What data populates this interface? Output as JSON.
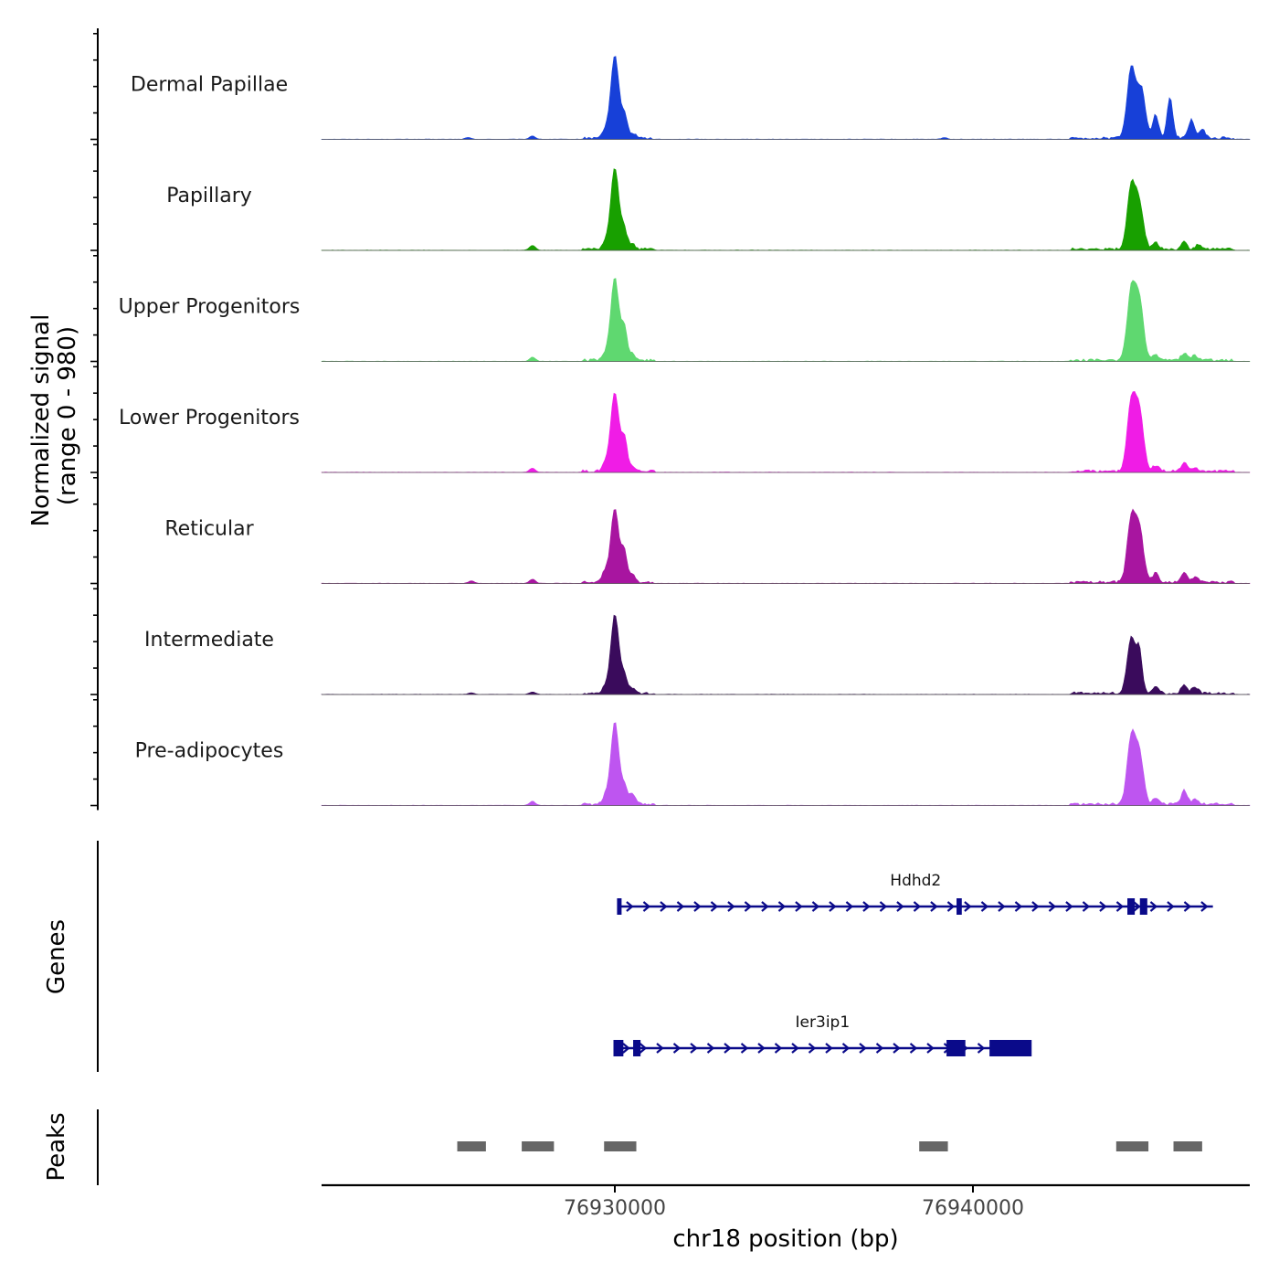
{
  "chart_data": {
    "type": "area",
    "title": "",
    "y_axis_label": "Normalized signal",
    "y_axis_sublabel": "(range 0 - 980)",
    "x_axis_label": "chr18 position (bp)",
    "x_range": [
      76922000,
      76948000
    ],
    "x_ticks": [
      76930000,
      76940000
    ],
    "x_tick_labels": [
      "76930000",
      "76940000"
    ],
    "signal_range": [
      0,
      980
    ],
    "tracks": [
      {
        "name": "Dermal Papillae",
        "color": "#1740d8"
      },
      {
        "name": "Papillary",
        "color": "#18a000"
      },
      {
        "name": "Upper Progenitors",
        "color": "#5fd870"
      },
      {
        "name": "Lower Progenitors",
        "color": "#f01ce6"
      },
      {
        "name": "Reticular",
        "color": "#a815a0"
      },
      {
        "name": "Intermediate",
        "color": "#3a0b5c"
      },
      {
        "name": "Pre-adipocytes",
        "color": "#be55f0"
      }
    ],
    "signal_peaks": [
      [
        [
          76930000,
          0.98
        ],
        [
          76930270,
          0.26
        ],
        [
          76929720,
          0.08
        ],
        [
          76930500,
          0.06
        ],
        [
          76944420,
          0.84
        ],
        [
          76944700,
          0.58
        ],
        [
          76945100,
          0.28
        ],
        [
          76945500,
          0.48
        ],
        [
          76946100,
          0.22
        ],
        [
          76946400,
          0.12
        ],
        [
          76927700,
          0.04
        ],
        [
          76925900,
          0.02
        ],
        [
          76939200,
          0.02
        ]
      ],
      [
        [
          76930000,
          0.97
        ],
        [
          76930270,
          0.22
        ],
        [
          76929720,
          0.06
        ],
        [
          76930500,
          0.06
        ],
        [
          76944420,
          0.74
        ],
        [
          76944650,
          0.52
        ],
        [
          76945100,
          0.08
        ],
        [
          76945900,
          0.08
        ],
        [
          76946300,
          0.06
        ],
        [
          76927700,
          0.06
        ]
      ],
      [
        [
          76930000,
          0.98
        ],
        [
          76930270,
          0.37
        ],
        [
          76929720,
          0.06
        ],
        [
          76930500,
          0.07
        ],
        [
          76944420,
          0.82
        ],
        [
          76944650,
          0.7
        ],
        [
          76945100,
          0.07
        ],
        [
          76945900,
          0.09
        ],
        [
          76946200,
          0.06
        ],
        [
          76927700,
          0.05
        ]
      ],
      [
        [
          76930000,
          0.94
        ],
        [
          76930270,
          0.38
        ],
        [
          76929720,
          0.08
        ],
        [
          76930500,
          0.06
        ],
        [
          76944420,
          0.82
        ],
        [
          76944650,
          0.7
        ],
        [
          76945100,
          0.07
        ],
        [
          76945900,
          0.11
        ],
        [
          76946200,
          0.05
        ],
        [
          76927700,
          0.05
        ]
      ],
      [
        [
          76930000,
          0.87
        ],
        [
          76930270,
          0.35
        ],
        [
          76929720,
          0.12
        ],
        [
          76930500,
          0.08
        ],
        [
          76944420,
          0.74
        ],
        [
          76944650,
          0.62
        ],
        [
          76945100,
          0.11
        ],
        [
          76945900,
          0.12
        ],
        [
          76946200,
          0.06
        ],
        [
          76927700,
          0.05
        ],
        [
          76926000,
          0.03
        ]
      ],
      [
        [
          76930000,
          0.94
        ],
        [
          76930270,
          0.2
        ],
        [
          76929720,
          0.06
        ],
        [
          76930500,
          0.06
        ],
        [
          76944420,
          0.66
        ],
        [
          76944650,
          0.48
        ],
        [
          76945100,
          0.08
        ],
        [
          76945900,
          0.1
        ],
        [
          76946200,
          0.08
        ],
        [
          76927700,
          0.03
        ],
        [
          76926000,
          0.02
        ]
      ],
      [
        [
          76930000,
          0.98
        ],
        [
          76930270,
          0.2
        ],
        [
          76929720,
          0.08
        ],
        [
          76930500,
          0.12
        ],
        [
          76944420,
          0.79
        ],
        [
          76944650,
          0.58
        ],
        [
          76945100,
          0.08
        ],
        [
          76945900,
          0.17
        ],
        [
          76946200,
          0.06
        ],
        [
          76927700,
          0.05
        ]
      ]
    ],
    "genes_axis_label": "Genes",
    "genes": [
      {
        "name": "Hdhd2",
        "start": 76930100,
        "end": 76946700,
        "exons": [
          [
            76930100,
            76930150
          ],
          [
            76939580,
            76939650
          ],
          [
            76944350,
            76944480
          ],
          [
            76944700,
            76944830
          ]
        ]
      },
      {
        "name": "Ier3ip1",
        "start": 76930000,
        "end": 76941600,
        "exons": [
          [
            76930000,
            76930200
          ],
          [
            76930550,
            76930680
          ],
          [
            76939300,
            76939750
          ],
          [
            76940500,
            76941600
          ]
        ]
      }
    ],
    "peaks_axis_label": "Peaks",
    "peaks": [
      [
        76925600,
        76926400
      ],
      [
        76927400,
        76928300
      ],
      [
        76929700,
        76930600
      ],
      [
        76938500,
        76939300
      ],
      [
        76944000,
        76944900
      ],
      [
        76945600,
        76946400
      ]
    ]
  }
}
